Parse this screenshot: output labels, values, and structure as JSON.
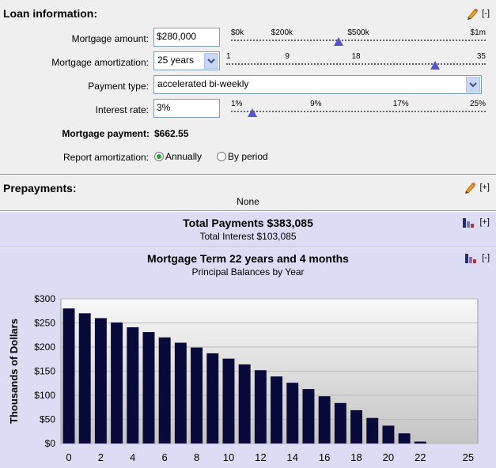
{
  "loan": {
    "title": "Loan information:",
    "collapse": "[-]",
    "mortgage_amount_label": "Mortgage amount:",
    "mortgage_amount_value": "$280,000",
    "amount_ticks": [
      "$0k",
      "$200k",
      "$500k",
      "$1m"
    ],
    "amount_slider_value": 280000,
    "amortization_label": "Mortgage amortization:",
    "amortization_value": "25 years",
    "amort_ticks": [
      "1",
      "9",
      "18",
      "35"
    ],
    "amort_slider_value": 25,
    "payment_type_label": "Payment type:",
    "payment_type_value": "accelerated bi-weekly",
    "interest_label": "Interest rate:",
    "interest_value": "3%",
    "interest_ticks": [
      "1%",
      "9%",
      "17%",
      "25%"
    ],
    "interest_slider_value": 3,
    "payment_label": "Mortgage payment:",
    "payment_value": "$662.55",
    "report_label": "Report amortization:",
    "report_opt1": "Annually",
    "report_opt2": "By period"
  },
  "prepay": {
    "title": "Prepayments:",
    "expand": "[+]",
    "value": "None"
  },
  "totals": {
    "title": "Total Payments $383,085",
    "subtitle": "Total Interest $103,085",
    "expand": "[+]"
  },
  "chart_section": {
    "collapse": "[-]"
  },
  "chart_data": {
    "type": "bar",
    "title": "Mortgage Term 22 years and 4 months",
    "subtitle": "Principal Balances by Year",
    "ylabel": "Thousands of Dollars",
    "xlabel": "",
    "ylim": [
      0,
      300
    ],
    "xlim": [
      0,
      25
    ],
    "yticks": [
      "$300",
      "$250",
      "$200",
      "$150",
      "$100",
      "$50",
      "$0"
    ],
    "xticks": [
      "0",
      "2",
      "4",
      "6",
      "8",
      "10",
      "12",
      "14",
      "16",
      "18",
      "20",
      "22",
      "25"
    ],
    "x": [
      0,
      1,
      2,
      3,
      4,
      5,
      6,
      7,
      8,
      9,
      10,
      11,
      12,
      13,
      14,
      15,
      16,
      17,
      18,
      19,
      20,
      21,
      22
    ],
    "values": [
      280,
      270,
      260,
      251,
      241,
      231,
      220,
      209,
      199,
      187,
      176,
      164,
      152,
      139,
      126,
      113,
      98,
      84,
      69,
      53,
      37,
      21,
      4
    ],
    "bar_color": "#0a0a3a",
    "grid": true
  }
}
